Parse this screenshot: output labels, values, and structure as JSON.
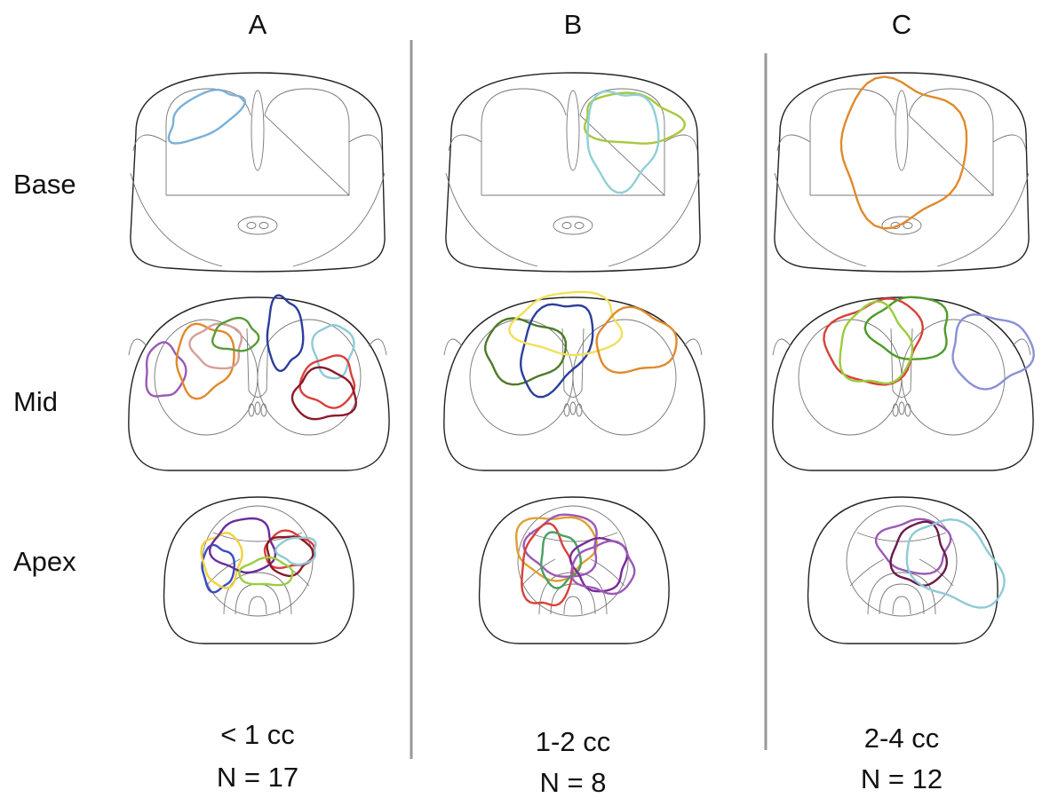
{
  "columns": [
    {
      "label": "A",
      "volume": "< 1 cc",
      "count": "N = 17"
    },
    {
      "label": "B",
      "volume": "1-2 cc",
      "count": "N = 8"
    },
    {
      "label": "C",
      "volume": "2-4 cc",
      "count": "N = 12"
    }
  ],
  "rows": [
    "Base",
    "Mid",
    "Apex"
  ]
}
